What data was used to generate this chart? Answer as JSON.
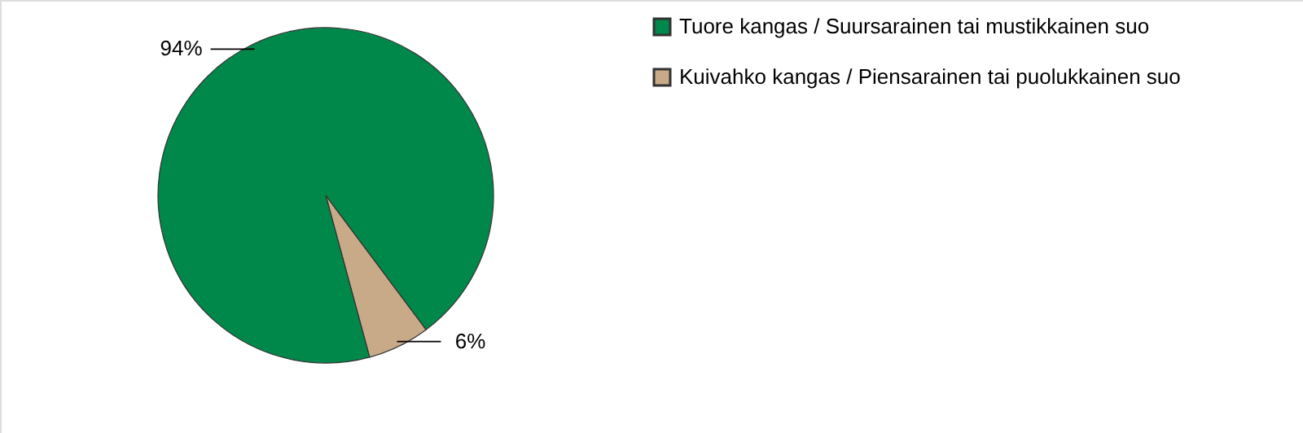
{
  "chart_data": {
    "type": "pie",
    "categories": [
      "Tuore kangas / Suursarainen tai mustikkainen suo",
      "Kuivahko kangas / Piensarainen tai puolukkainen suo"
    ],
    "values": [
      94,
      6
    ],
    "colors": [
      "#00874a",
      "#c8aa88"
    ],
    "value_labels": [
      "94%",
      "6%"
    ],
    "legend": "top right"
  }
}
